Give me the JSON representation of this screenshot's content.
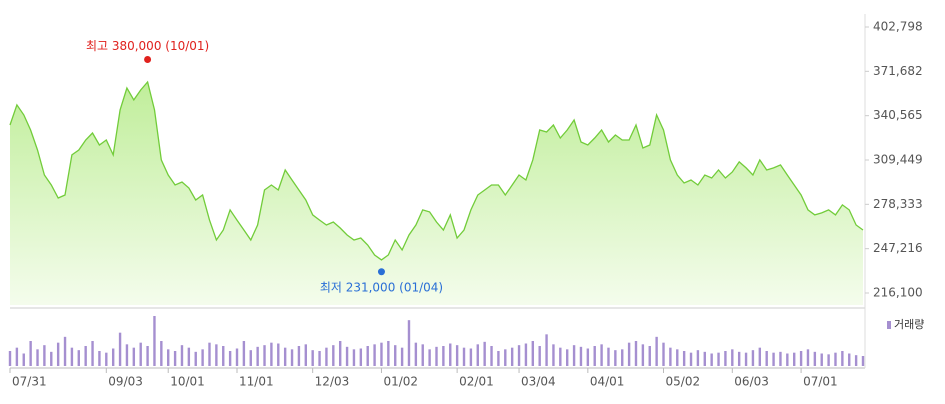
{
  "chart_data": {
    "type": "line",
    "categories": [
      "07/31",
      null,
      null,
      null,
      null,
      null,
      null,
      null,
      null,
      null,
      null,
      null,
      null,
      null,
      "09/03",
      null,
      null,
      null,
      null,
      null,
      null,
      null,
      null,
      "10/01",
      null,
      null,
      null,
      null,
      null,
      null,
      null,
      null,
      null,
      "11/01",
      null,
      null,
      null,
      null,
      null,
      null,
      null,
      null,
      null,
      null,
      "12/03",
      null,
      null,
      null,
      null,
      null,
      null,
      null,
      null,
      null,
      "01/02",
      null,
      null,
      null,
      null,
      null,
      null,
      null,
      null,
      null,
      null,
      "02/01",
      null,
      null,
      null,
      null,
      null,
      null,
      null,
      null,
      "03/04",
      null,
      null,
      null,
      null,
      null,
      null,
      null,
      null,
      null,
      "04/01",
      null,
      null,
      null,
      null,
      null,
      null,
      null,
      null,
      null,
      null,
      "05/02",
      null,
      null,
      null,
      null,
      null,
      null,
      null,
      null,
      null,
      "06/03",
      null,
      null,
      null,
      null,
      null,
      null,
      null,
      null,
      null,
      "07/01",
      null,
      null,
      null,
      null,
      null,
      null,
      null,
      null,
      null
    ],
    "series": [
      {
        "color": "#72cc3a",
        "values": [
          334000,
          348100,
          341100,
          330500,
          316500,
          298900,
          291900,
          282800,
          284900,
          313000,
          316500,
          323500,
          328400,
          320000,
          323500,
          313000,
          344600,
          360000,
          351600,
          358600,
          364200,
          344600,
          309500,
          298900,
          291900,
          294000,
          289800,
          281400,
          284900,
          267300,
          253300,
          260300,
          274400,
          267300,
          260300,
          253300,
          263800,
          288400,
          291900,
          288400,
          302400,
          295400,
          288400,
          281400,
          270900,
          267300,
          263800,
          265900,
          261700,
          256800,
          253300,
          254700,
          249800,
          242800,
          239300,
          242800,
          253300,
          246300,
          256800,
          263800,
          274400,
          273000,
          265900,
          260300,
          270900,
          254700,
          260300,
          274400,
          284900,
          288400,
          291900,
          291900,
          284900,
          291900,
          298900,
          295400,
          309500,
          330500,
          329100,
          334000,
          324900,
          330500,
          337500,
          322100,
          320000,
          324900,
          330500,
          322100,
          327000,
          323500,
          323500,
          334000,
          317900,
          320000,
          341100,
          330500,
          309500,
          298900,
          293300,
          295400,
          291900,
          298900,
          296800,
          302400,
          296800,
          301000,
          308100,
          303900,
          298900,
          309500,
          302400,
          303900,
          306000,
          298900,
          291900,
          284900,
          274400,
          270900,
          272300,
          274400,
          270900,
          277900,
          274400,
          263800,
          260300
        ]
      }
    ],
    "volume": {
      "name": "거래량",
      "color": "#a58fd0",
      "values": [
        18,
        22,
        15,
        30,
        20,
        25,
        17,
        28,
        35,
        22,
        19,
        24,
        30,
        18,
        16,
        21,
        40,
        26,
        22,
        28,
        24,
        60,
        30,
        20,
        18,
        25,
        22,
        17,
        20,
        28,
        26,
        24,
        18,
        21,
        30,
        19,
        23,
        25,
        28,
        27,
        22,
        20,
        24,
        26,
        19,
        18,
        22,
        25,
        30,
        23,
        20,
        21,
        24,
        26,
        28,
        30,
        25,
        22,
        55,
        28,
        26,
        20,
        23,
        24,
        27,
        25,
        22,
        21,
        26,
        29,
        24,
        18,
        20,
        22,
        25,
        27,
        30,
        24,
        38,
        26,
        22,
        20,
        25,
        23,
        21,
        24,
        26,
        22,
        19,
        20,
        28,
        30,
        26,
        24,
        35,
        28,
        22,
        20,
        18,
        16,
        19,
        17,
        15,
        16,
        18,
        20,
        17,
        16,
        19,
        22,
        18,
        16,
        17,
        15,
        16,
        18,
        20,
        17,
        15,
        14,
        16,
        18,
        15,
        13,
        12
      ]
    },
    "annotations": [
      {
        "text": "최고 380,000 (10/01)",
        "value": 380000,
        "color": "#e0211d"
      },
      {
        "text": "최저 231,000 (01/04)",
        "value": 231000,
        "color": "#2a6fd6"
      }
    ],
    "ylim": [
      216100,
      402798
    ],
    "yticks": [
      {
        "value": 216100,
        "label": "216,100"
      },
      {
        "value": 247216,
        "label": "247,216"
      },
      {
        "value": 278333,
        "label": "278,333"
      },
      {
        "value": 309449,
        "label": "309,449"
      },
      {
        "value": 340565,
        "label": "340,565"
      },
      {
        "value": 371682,
        "label": "371,682"
      },
      {
        "value": 402798,
        "label": "402,798"
      }
    ],
    "grid": false
  }
}
